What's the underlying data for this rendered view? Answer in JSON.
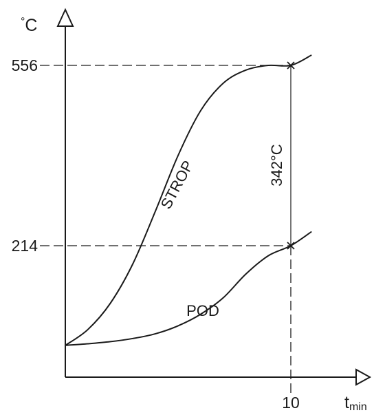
{
  "chart_data": {
    "type": "line",
    "y_unit": "°C",
    "x_unit_main": "t",
    "x_unit_sub": "min",
    "y_ticks": [
      {
        "value": 556,
        "label": "556"
      },
      {
        "value": 214,
        "label": "214"
      }
    ],
    "x_ticks": [
      {
        "value": 10,
        "label": "10"
      }
    ],
    "xlim": [
      0,
      11.3
    ],
    "ylim": [
      0,
      590
    ],
    "series": [
      {
        "name": "STROP",
        "points": [
          [
            0,
            25
          ],
          [
            1,
            55
          ],
          [
            2,
            105
          ],
          [
            3,
            180
          ],
          [
            4,
            280
          ],
          [
            5,
            385
          ],
          [
            6,
            470
          ],
          [
            7,
            522
          ],
          [
            8,
            547
          ],
          [
            9,
            556
          ],
          [
            10,
            556
          ],
          [
            10.9,
            575
          ]
        ]
      },
      {
        "name": "POD",
        "points": [
          [
            0,
            25
          ],
          [
            1,
            28
          ],
          [
            2,
            32
          ],
          [
            3,
            38
          ],
          [
            4,
            47
          ],
          [
            5,
            62
          ],
          [
            6,
            84
          ],
          [
            7,
            115
          ],
          [
            8,
            160
          ],
          [
            9,
            195
          ],
          [
            10,
            214
          ],
          [
            10.9,
            240
          ]
        ]
      }
    ],
    "annotations": [
      {
        "text": "342°C",
        "from": 214,
        "to": 556,
        "x": 10
      }
    ]
  }
}
